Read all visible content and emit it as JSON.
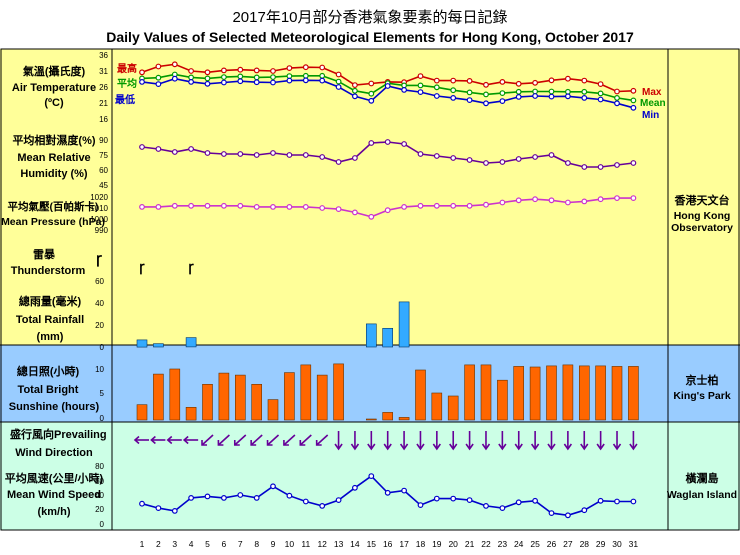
{
  "header": {
    "title_zh": "2017年10月部分香港氣象要素的每日記錄",
    "title_en": "Daily Values of Selected Meteorological Elements for Hong Kong, October 2017"
  },
  "stations": {
    "observatory": {
      "zh": "香港天文台",
      "en1": "Hong Kong",
      "en2": "Observatory"
    },
    "kings_park": {
      "zh": "京士柏",
      "en": "King's Park"
    },
    "waglan": {
      "zh": "橫瀾島",
      "en": "Waglan Island"
    }
  },
  "colors": {
    "yellow_bg": "#ffff99",
    "blue_bg": "#99ccff",
    "green_bg": "#ccffe6",
    "max": "#cc0000",
    "mean": "#009900",
    "min": "#0000cc",
    "humidity": "#660099",
    "pressure": "#cc33cc",
    "rain": "#33aaff",
    "sunshine": "#ff6600",
    "wind": "#660099",
    "speed": "#0000cc"
  },
  "panels": {
    "temperature": {
      "label_zh": "氣溫(攝氏度)",
      "label_en1": "Air Temperature",
      "label_en2": "(ºC)",
      "legend_zh": [
        "最高",
        "平均",
        "最低"
      ],
      "legend_en": [
        "Max",
        "Mean",
        "Min"
      ],
      "ticks": [
        "36",
        "31",
        "26",
        "21",
        "16"
      ]
    },
    "humidity": {
      "label_zh": "平均相對濕度(%)",
      "label_en1": "Mean Relative",
      "label_en2": "Humidity  (%)",
      "ticks": [
        "90",
        "75",
        "60",
        "45"
      ]
    },
    "pressure": {
      "label_zh": "平均氣壓(百帕斯卡)",
      "label_en": "Mean Pressure (hPa)",
      "ticks": [
        "1020",
        "1010",
        "1000",
        "990"
      ]
    },
    "thunder": {
      "label_zh": "雷暴",
      "label_en": "Thunderstorm",
      "symbol": "ꞅ"
    },
    "rainfall": {
      "label_zh": "總雨量(毫米)",
      "label_en1": "Total Rainfall",
      "label_en2": "(mm)",
      "ticks": [
        "60",
        "40",
        "20",
        "0"
      ]
    },
    "sunshine": {
      "label_zh": "總日照(小時)",
      "label_en1": "Total Bright",
      "label_en2": "Sunshine  (hours)",
      "ticks": [
        "10",
        "5",
        "0"
      ]
    },
    "wind_dir": {
      "label_zh": "盛行風向",
      "label_en_inline": "Prevailing",
      "label_en2": "Wind Direction"
    },
    "wind_speed": {
      "label_zh": "平均風速(公里/小時)",
      "label_en1": "Mean Wind Speed",
      "label_en2": "(km/h)",
      "ticks": [
        "80",
        "60",
        "40",
        "20",
        "0"
      ]
    }
  },
  "chart_data": {
    "type": "line",
    "title": "Daily Values of Selected Meteorological Elements for Hong Kong, October 2017",
    "x": [
      "1",
      "2",
      "3",
      "4",
      "5",
      "6",
      "7",
      "8",
      "9",
      "10",
      "11",
      "12",
      "13",
      "14",
      "15",
      "16",
      "17",
      "18",
      "19",
      "20",
      "21",
      "22",
      "23",
      "24",
      "25",
      "26",
      "27",
      "28",
      "29",
      "30",
      "31"
    ],
    "temperature": {
      "ylim": [
        16,
        36
      ],
      "series": [
        {
          "name": "Max",
          "values": [
            30.6,
            32.4,
            33.1,
            31.0,
            30.6,
            31.2,
            31.4,
            31.2,
            31.0,
            31.9,
            32.2,
            32.1,
            29.9,
            26.6,
            27.1,
            27.6,
            27.5,
            29.4,
            28.0,
            28.0,
            27.9,
            26.7,
            27.6,
            27.0,
            27.3,
            28.1,
            28.6,
            28.0,
            26.9,
            24.6,
            24.8
          ]
        },
        {
          "name": "Mean",
          "values": [
            28.7,
            28.9,
            29.9,
            29.0,
            28.7,
            29.1,
            29.3,
            29.0,
            29.1,
            29.4,
            29.5,
            29.5,
            27.7,
            24.8,
            23.9,
            27.2,
            26.5,
            26.5,
            25.9,
            25.0,
            24.3,
            23.7,
            24.1,
            24.5,
            24.6,
            24.6,
            24.5,
            24.5,
            24.0,
            22.6,
            21.8
          ]
        },
        {
          "name": "Min",
          "values": [
            27.6,
            26.9,
            28.6,
            27.6,
            27.0,
            27.4,
            27.8,
            27.5,
            27.4,
            28.0,
            28.1,
            28.0,
            26.0,
            23.1,
            21.7,
            26.3,
            25.1,
            24.4,
            23.2,
            22.6,
            21.9,
            20.9,
            21.6,
            22.9,
            23.2,
            23.0,
            23.1,
            22.6,
            22.1,
            20.9,
            19.5
          ]
        }
      ]
    },
    "humidity": {
      "ylim": [
        45,
        90
      ],
      "values": [
        83,
        81,
        78,
        81,
        77,
        76,
        76,
        75,
        77,
        75,
        75,
        73,
        68,
        72,
        87,
        88,
        86,
        76,
        74,
        72,
        70,
        67,
        68,
        71,
        73,
        75,
        67,
        63,
        63,
        65,
        67
      ]
    },
    "pressure": {
      "ylim": [
        990,
        1020
      ],
      "values": [
        1011,
        1011,
        1012,
        1012,
        1012,
        1012,
        1012,
        1011,
        1011,
        1011,
        1011,
        1010,
        1009,
        1006,
        1002,
        1008,
        1011,
        1012,
        1012,
        1012,
        1012,
        1013,
        1015,
        1017,
        1018,
        1017,
        1015,
        1016,
        1018,
        1019,
        1019
      ]
    },
    "thunderstorm_days": [
      1,
      4
    ],
    "rainfall": {
      "ylim": [
        0,
        60
      ],
      "values": [
        6.5,
        3.0,
        0,
        8.5,
        0,
        0,
        0,
        0,
        0,
        0,
        0,
        0,
        0,
        0,
        21,
        17,
        41,
        0,
        0,
        0,
        0,
        0,
        0,
        0,
        0,
        0,
        0,
        0,
        0,
        0,
        0
      ]
    },
    "sunshine": {
      "ylim": [
        0,
        13
      ],
      "values": [
        3.0,
        9.0,
        10.0,
        2.5,
        7.0,
        9.2,
        8.8,
        7.0,
        4.0,
        9.3,
        10.8,
        8.8,
        11.0,
        0,
        0.2,
        1.5,
        0.5,
        9.8,
        5.3,
        4.7,
        10.8,
        10.8,
        7.8,
        10.5,
        10.4,
        10.6,
        10.8,
        10.6,
        10.6,
        10.5,
        10.5
      ]
    },
    "wind_direction": [
      "E",
      "E",
      "E",
      "E",
      "NE",
      "NE",
      "NE",
      "NE",
      "NE",
      "NE",
      "NE",
      "NE",
      "N",
      "N",
      "N",
      "N",
      "N",
      "N",
      "N",
      "N",
      "N",
      "N",
      "N",
      "N",
      "N",
      "N",
      "N",
      "N",
      "N",
      "N",
      "N"
    ],
    "wind_speed": {
      "ylim": [
        0,
        80
      ],
      "values": [
        28,
        22,
        18,
        36,
        38,
        36,
        40,
        36,
        52,
        39,
        31,
        25,
        33,
        50,
        66,
        43,
        46,
        26,
        35,
        35,
        33,
        25,
        22,
        30,
        32,
        15,
        12,
        19,
        32,
        31,
        31
      ]
    }
  }
}
